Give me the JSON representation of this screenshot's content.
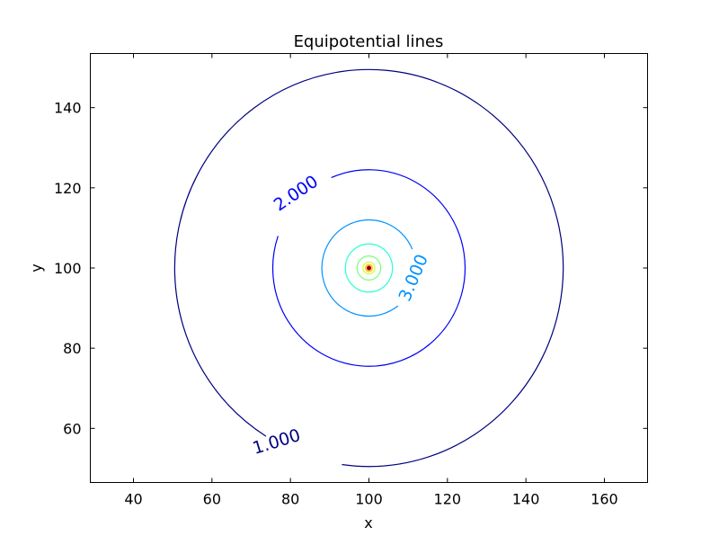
{
  "chart_data": {
    "type": "contour",
    "title": "Equipotential lines",
    "xlabel": "x",
    "ylabel": "y",
    "xlim": [
      29,
      171
    ],
    "ylim": [
      46.5,
      153.5
    ],
    "xticks": [
      40,
      60,
      80,
      100,
      120,
      140,
      160
    ],
    "yticks": [
      60,
      80,
      100,
      120,
      140
    ],
    "center": {
      "x": 100,
      "y": 100
    },
    "levels": [
      {
        "value": 1.0,
        "radius": 49.5,
        "color": "#00007f",
        "label": "1.000",
        "label_at": {
          "x": 76.5,
          "y": 56.5
        },
        "label_angle_deg": -17,
        "gap_deg": [
          238,
          262
        ]
      },
      {
        "value": 2.0,
        "radius": 24.5,
        "color": "#0000f5",
        "label": "2.000",
        "label_at": {
          "x": 81.5,
          "y": 118.5
        },
        "label_angle_deg": -34,
        "gap_deg": [
          113,
          161
        ]
      },
      {
        "value": 3.0,
        "radius": 12.0,
        "color": "#0093ff",
        "label": "3.000",
        "label_at": {
          "x": 111.5,
          "y": 97.5
        },
        "label_angle_deg": -67,
        "gap_deg": [
          -52,
          23
        ]
      },
      {
        "value": 4.0,
        "radius": 6.0,
        "color": "#28ffcf",
        "label": "",
        "label_at": null,
        "label_angle_deg": 0,
        "gap_deg": null
      },
      {
        "value": 5.0,
        "radius": 3.0,
        "color": "#7dff7a",
        "label": "",
        "label_at": null,
        "label_angle_deg": 0,
        "gap_deg": null
      },
      {
        "value": 6.0,
        "radius": 1.5,
        "color": "#cfff28",
        "label": "",
        "label_at": null,
        "label_angle_deg": 0,
        "gap_deg": null
      },
      {
        "value": 7.0,
        "radius": 0.9,
        "color": "#ffb900",
        "label": "",
        "label_at": null,
        "label_angle_deg": 0,
        "gap_deg": null
      },
      {
        "value": 8.0,
        "radius": 0.5,
        "color": "#ff3f00",
        "label": "",
        "label_at": null,
        "label_angle_deg": 0,
        "gap_deg": null
      },
      {
        "value": 9.0,
        "radius": 0.25,
        "color": "#7f0000",
        "label": "",
        "label_at": null,
        "label_angle_deg": 0,
        "gap_deg": null
      }
    ],
    "grid": false,
    "legend": "none"
  }
}
